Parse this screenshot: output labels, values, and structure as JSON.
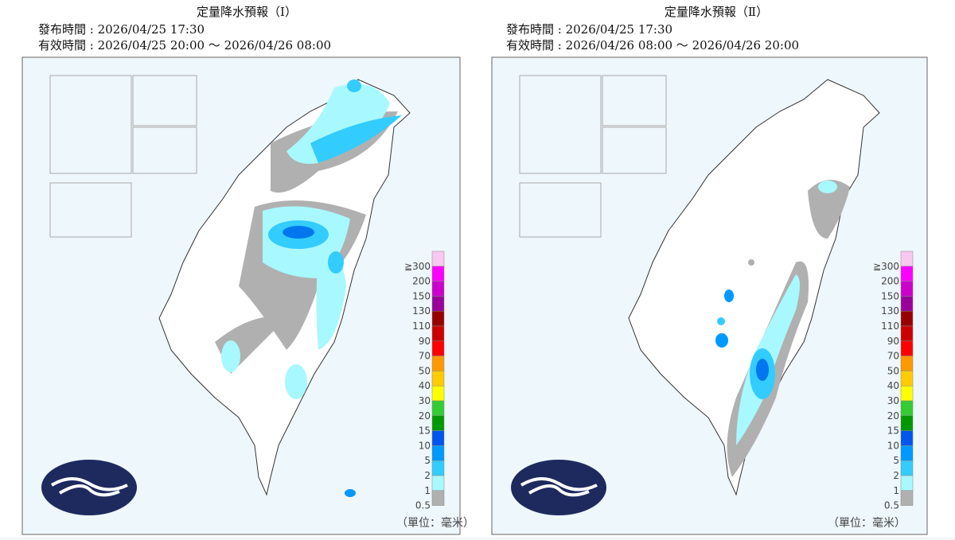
{
  "panels": [
    {
      "title": "定量降水預報（Ⅰ）",
      "issued": "發布時間 : 2026/04/25 17:30",
      "valid": "有效時間 : 2026/04/25 20:00 ～ 2026/04/26 08:00",
      "unit": "（單位：毫米）"
    },
    {
      "title": "定量降水預報（Ⅱ）",
      "issued": "發布時間 : 2026/04/25 17:30",
      "valid": "有效時間 : 2026/04/26 08:00 ～ 2026/04/26 20:00",
      "unit": "（單位：毫米）"
    }
  ],
  "legend": [
    {
      "label": "≧300",
      "color": "#f8c8f0"
    },
    {
      "label": "200",
      "color": "#ff00ff"
    },
    {
      "label": "150",
      "color": "#cc00cc"
    },
    {
      "label": "130",
      "color": "#990099"
    },
    {
      "label": "110",
      "color": "#990000"
    },
    {
      "label": "90",
      "color": "#cc0000"
    },
    {
      "label": "70",
      "color": "#ff0000"
    },
    {
      "label": "50",
      "color": "#ff9900"
    },
    {
      "label": "40",
      "color": "#ffcc00"
    },
    {
      "label": "30",
      "color": "#ffff00"
    },
    {
      "label": "20",
      "color": "#33cc33"
    },
    {
      "label": "15",
      "color": "#009900"
    },
    {
      "label": "10",
      "color": "#0055ee"
    },
    {
      "label": "5",
      "color": "#0099ff"
    },
    {
      "label": "2",
      "color": "#33ccff"
    },
    {
      "label": "1",
      "color": "#a8f8ff"
    },
    {
      "label": "0.5",
      "color": "#b0b0b0"
    }
  ]
}
